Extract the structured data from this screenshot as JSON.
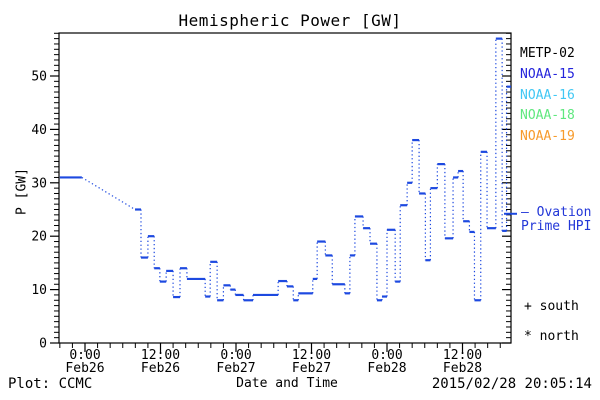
{
  "page": {
    "background": "#ffffff"
  },
  "title": "Hemispheric Power [GW]",
  "legend": {
    "items": [
      {
        "id": "metp02",
        "label": "METP-02",
        "color": "#000000"
      },
      {
        "id": "noaa15",
        "label": "NOAA-15",
        "color": "#2424dc"
      },
      {
        "id": "noaa16",
        "label": "NOAA-16",
        "color": "#41c8f4"
      },
      {
        "id": "noaa18",
        "label": "NOAA-18",
        "color": "#5fe87f"
      },
      {
        "id": "noaa19",
        "label": "NOAA-19",
        "color": "#f79b2c"
      }
    ]
  },
  "annotations": {
    "ovation_line1": "— Ovation",
    "ovation_line2": "Prime HPI",
    "ovation_color": "#2337d8",
    "south_marker": "+ south",
    "north_marker": "* north",
    "plot_credit": "Plot: CCMC",
    "timestamp": "2015/02/28 20:05:14"
  },
  "chart_data": {
    "type": "line",
    "subtype": "step-bars-with-dotted-connectors",
    "title": "Hemispheric Power [GW]",
    "xlabel": "Date and Time",
    "ylabel": "P [GW]",
    "line_color": "#1d49e0",
    "axis_color": "#000000",
    "ylim": [
      0,
      58
    ],
    "y_major_ticks": [
      0,
      10,
      20,
      30,
      40,
      50
    ],
    "y_minor_step_gw": 1,
    "x_hours_range_from_feb26_0000": [
      -4,
      67.7
    ],
    "x_minor_step_hours": 2,
    "x_major_ticks": [
      {
        "hours": 0,
        "time": "0:00",
        "date": "Feb26"
      },
      {
        "hours": 12,
        "time": "12:00",
        "date": "Feb26"
      },
      {
        "hours": 24,
        "time": "0:00",
        "date": "Feb27"
      },
      {
        "hours": 36,
        "time": "12:00",
        "date": "Feb27"
      },
      {
        "hours": 48,
        "time": "0:00",
        "date": "Feb28"
      },
      {
        "hours": 60,
        "time": "12:00",
        "date": "Feb28"
      }
    ],
    "ovation_prime_hpi_marker_gw": 24.2,
    "legend_position": "right",
    "grid": false,
    "series": [
      {
        "name": "Hemispheric Power HPI (GW)",
        "units": "GW",
        "points": [
          {
            "t0": -4.0,
            "t1": -0.5,
            "v": 31
          },
          {
            "t0": 7.95,
            "t1": 8.9,
            "v": 25
          },
          {
            "t0": 8.9,
            "t1": 10.0,
            "v": 16
          },
          {
            "t0": 10.0,
            "t1": 11.0,
            "v": 20
          },
          {
            "t0": 11.0,
            "t1": 11.9,
            "v": 14
          },
          {
            "t0": 11.9,
            "t1": 12.9,
            "v": 11.5
          },
          {
            "t0": 12.9,
            "t1": 14.0,
            "v": 13.5
          },
          {
            "t0": 14.0,
            "t1": 15.1,
            "v": 8.6
          },
          {
            "t0": 15.1,
            "t1": 16.2,
            "v": 14
          },
          {
            "t0": 16.2,
            "t1": 19.1,
            "v": 12
          },
          {
            "t0": 19.1,
            "t1": 19.9,
            "v": 8.7
          },
          {
            "t0": 19.9,
            "t1": 21.0,
            "v": 15.2
          },
          {
            "t0": 21.0,
            "t1": 22.0,
            "v": 8
          },
          {
            "t0": 22.0,
            "t1": 23.1,
            "v": 10.8
          },
          {
            "t0": 23.1,
            "t1": 23.9,
            "v": 10
          },
          {
            "t0": 23.9,
            "t1": 25.2,
            "v": 9
          },
          {
            "t0": 25.2,
            "t1": 26.7,
            "v": 8
          },
          {
            "t0": 26.7,
            "t1": 30.7,
            "v": 9
          },
          {
            "t0": 30.7,
            "t1": 32.1,
            "v": 11.6
          },
          {
            "t0": 32.1,
            "t1": 33.1,
            "v": 10.6
          },
          {
            "t0": 33.1,
            "t1": 33.9,
            "v": 8
          },
          {
            "t0": 33.9,
            "t1": 36.2,
            "v": 9.3
          },
          {
            "t0": 36.2,
            "t1": 36.9,
            "v": 12
          },
          {
            "t0": 36.9,
            "t1": 38.2,
            "v": 19
          },
          {
            "t0": 38.2,
            "t1": 39.3,
            "v": 16.4
          },
          {
            "t0": 39.3,
            "t1": 41.3,
            "v": 11
          },
          {
            "t0": 41.3,
            "t1": 42.1,
            "v": 9.3
          },
          {
            "t0": 42.1,
            "t1": 42.9,
            "v": 16.4
          },
          {
            "t0": 42.9,
            "t1": 44.2,
            "v": 23.7
          },
          {
            "t0": 44.2,
            "t1": 45.3,
            "v": 21.5
          },
          {
            "t0": 45.3,
            "t1": 46.4,
            "v": 18.6
          },
          {
            "t0": 46.4,
            "t1": 47.2,
            "v": 8
          },
          {
            "t0": 47.2,
            "t1": 48.0,
            "v": 8.7
          },
          {
            "t0": 48.0,
            "t1": 49.3,
            "v": 21.2
          },
          {
            "t0": 49.3,
            "t1": 50.1,
            "v": 11.5
          },
          {
            "t0": 50.1,
            "t1": 51.2,
            "v": 25.8
          },
          {
            "t0": 51.2,
            "t1": 52.0,
            "v": 30
          },
          {
            "t0": 52.0,
            "t1": 53.1,
            "v": 38
          },
          {
            "t0": 53.1,
            "t1": 54.1,
            "v": 28
          },
          {
            "t0": 54.1,
            "t1": 54.9,
            "v": 15.5
          },
          {
            "t0": 54.9,
            "t1": 56.0,
            "v": 29
          },
          {
            "t0": 56.0,
            "t1": 57.2,
            "v": 33.5
          },
          {
            "t0": 57.2,
            "t1": 58.5,
            "v": 19.6
          },
          {
            "t0": 58.5,
            "t1": 59.3,
            "v": 31
          },
          {
            "t0": 59.3,
            "t1": 60.1,
            "v": 32.2
          },
          {
            "t0": 60.1,
            "t1": 61.1,
            "v": 22.8
          },
          {
            "t0": 61.1,
            "t1": 61.9,
            "v": 20.8
          },
          {
            "t0": 61.9,
            "t1": 62.9,
            "v": 8
          },
          {
            "t0": 62.9,
            "t1": 63.9,
            "v": 35.8
          },
          {
            "t0": 63.9,
            "t1": 65.3,
            "v": 21.5
          },
          {
            "t0": 65.3,
            "t1": 66.3,
            "v": 57
          },
          {
            "t0": 66.3,
            "t1": 67.0,
            "v": 21
          },
          {
            "t0": 67.0,
            "t1": 67.7,
            "v": 48
          }
        ]
      }
    ]
  }
}
